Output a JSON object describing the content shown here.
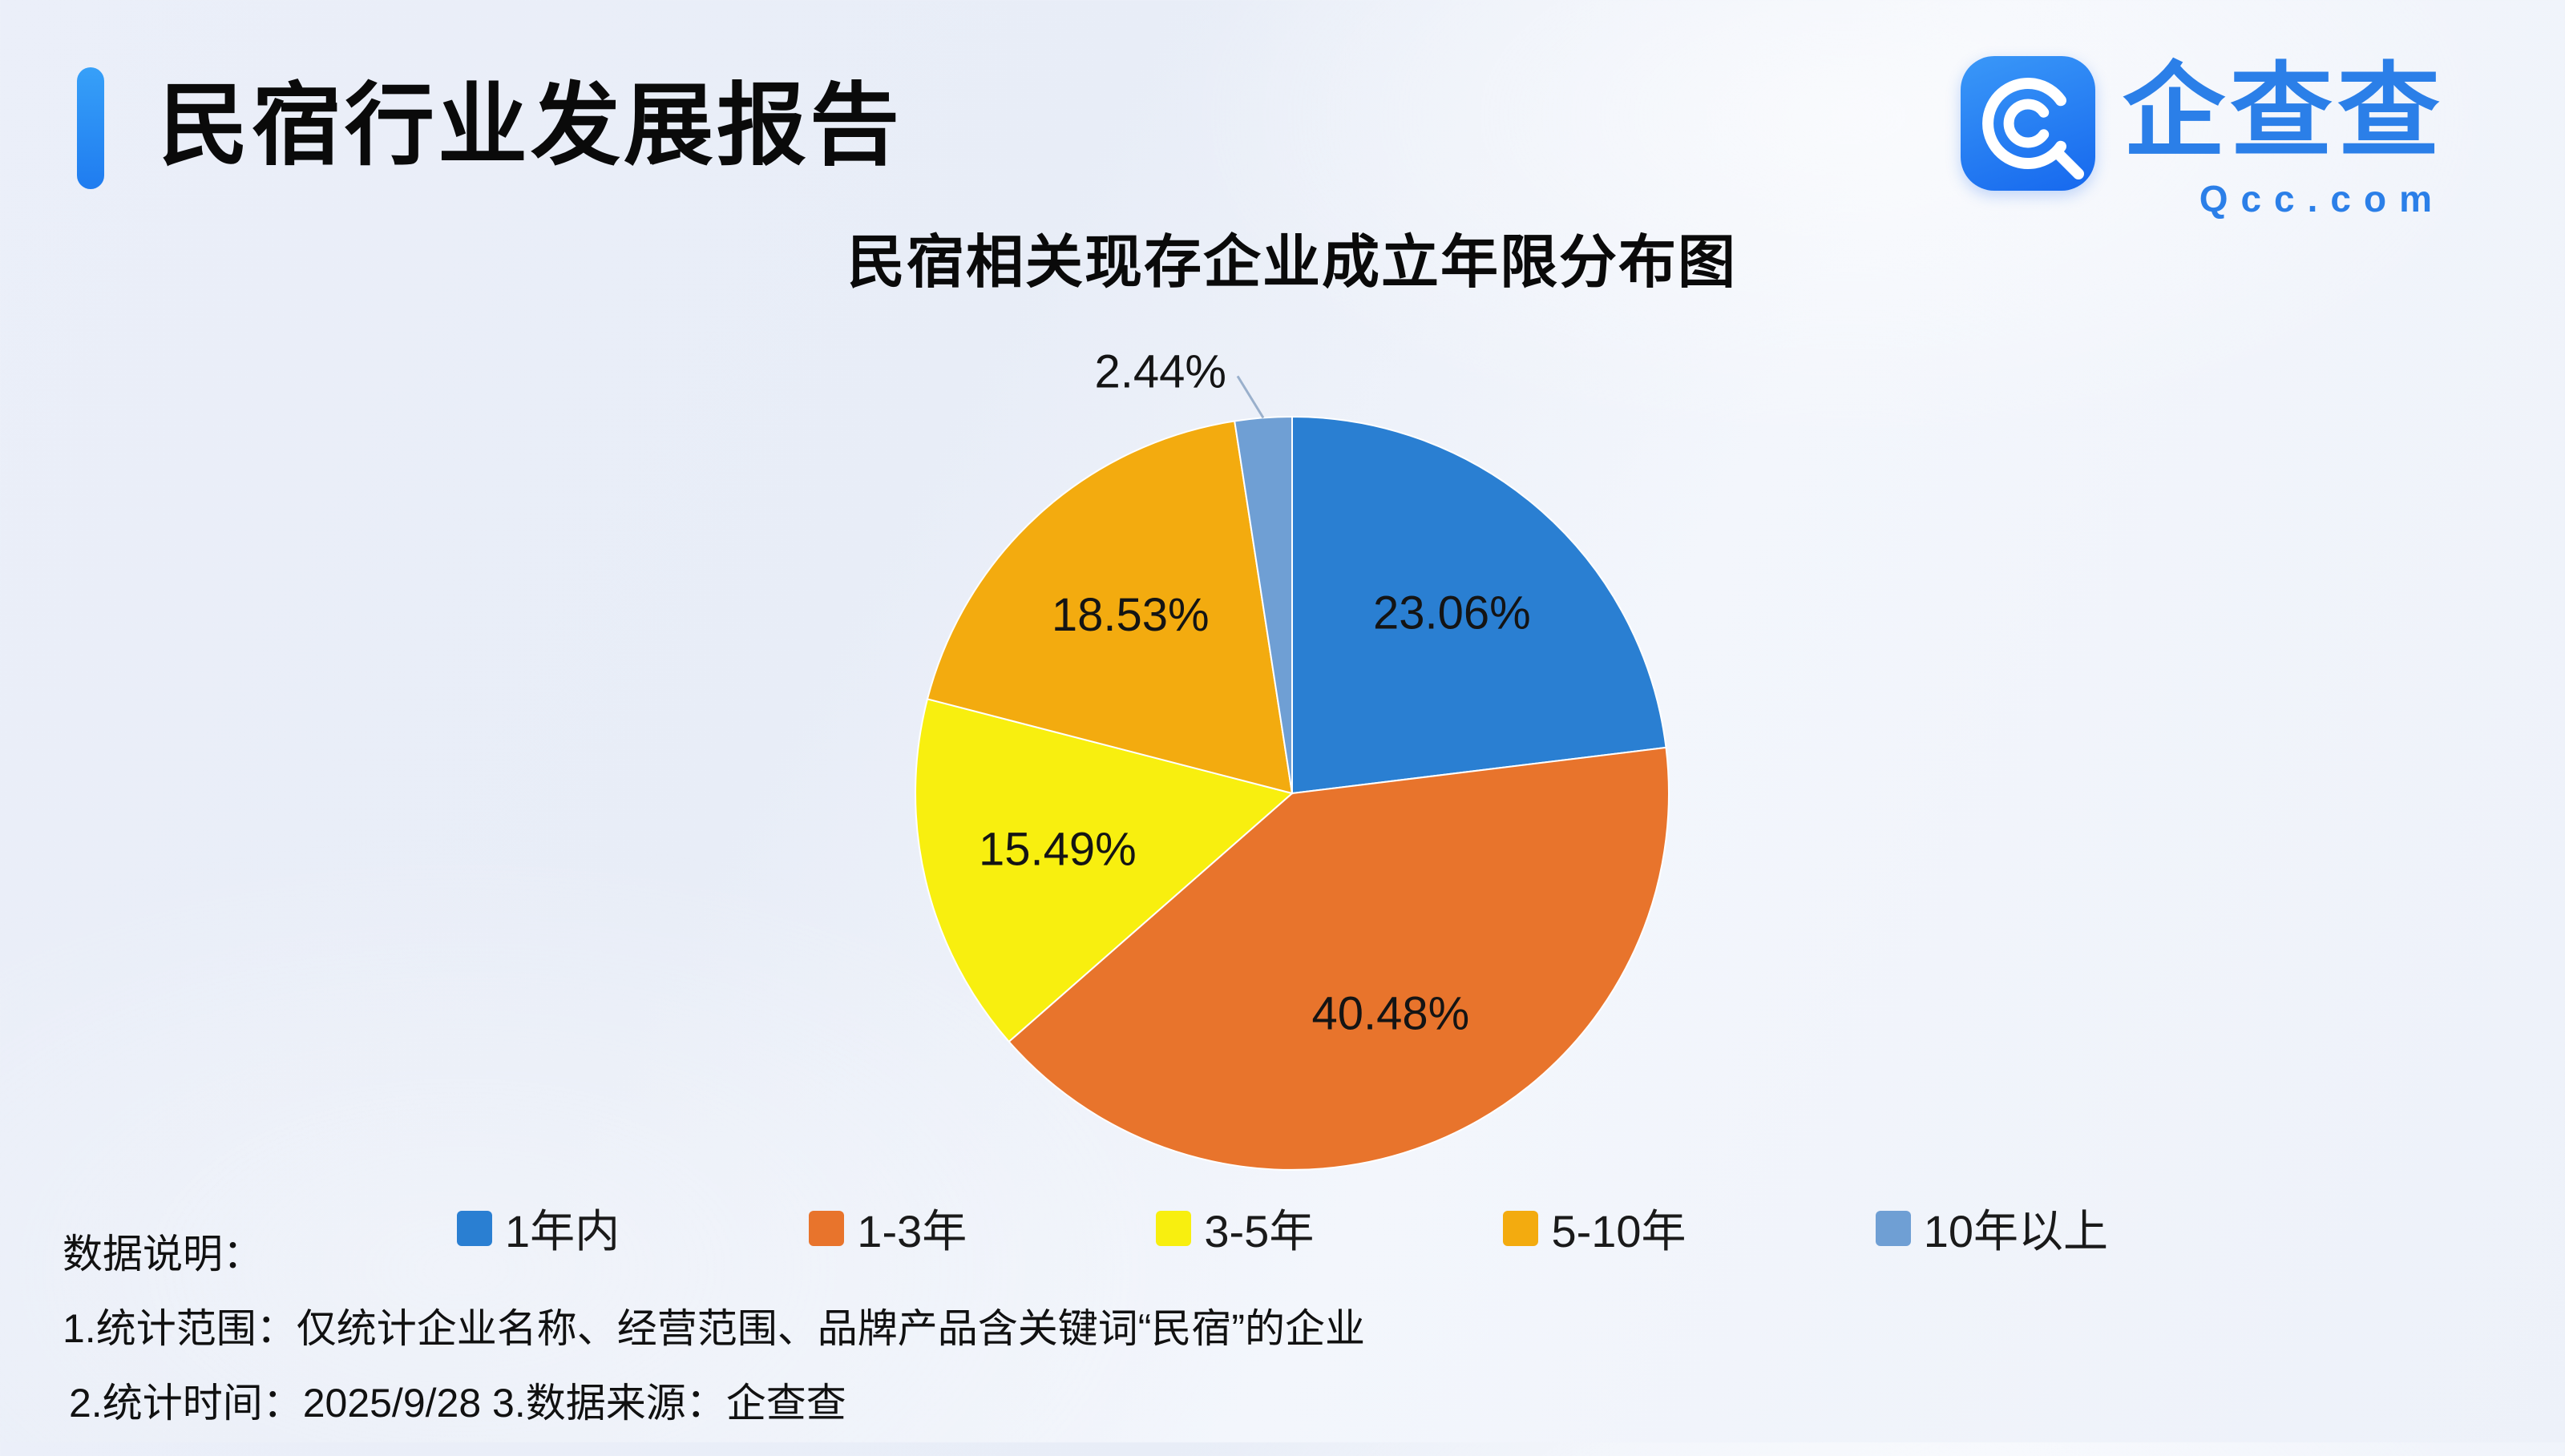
{
  "header": {
    "title": "民宿行业发展报告",
    "logo": {
      "brand": "企查查",
      "domain": "Qcc.com"
    }
  },
  "theme": {
    "accent": "#1f7cf0",
    "brand_blue": "#2b7fe8",
    "label_color": "#141414",
    "leader_line": "#9ab0cc",
    "background": "#edf1f9"
  },
  "chart_data": {
    "type": "pie",
    "title": "民宿相关现存企业成立年限分布图",
    "labels": [
      "1年内",
      "1-3年",
      "3-5年",
      "5-10年",
      "10年以上"
    ],
    "values": [
      23.06,
      40.48,
      15.49,
      18.53,
      2.44
    ],
    "display_labels": [
      "23.06%",
      "40.48%",
      "15.49%",
      "18.53%",
      "2.44%"
    ],
    "colors": [
      "#2a7fd2",
      "#e8742c",
      "#f8ef0f",
      "#f3ab0f",
      "#6f9fd4"
    ],
    "start_angle_deg": 0,
    "direction": "clockwise",
    "legend_position": "bottom"
  },
  "footnotes": {
    "heading": "数据说明：",
    "line1": "1.统计范围：仅统计企业名称、经营范围、品牌产品含关键词“民宿”的企业",
    "line2": "2.统计时间：2025/9/28  3.数据来源：企查查"
  }
}
